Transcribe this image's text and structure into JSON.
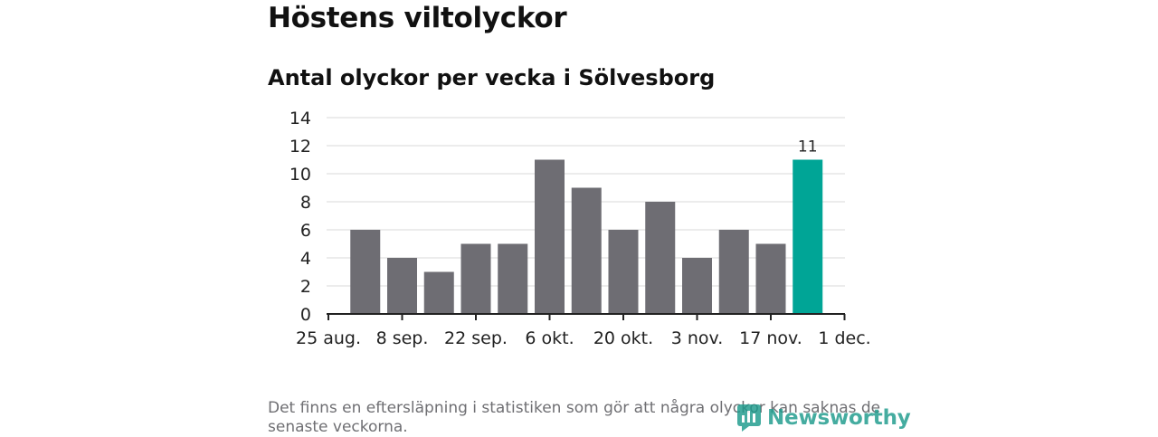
{
  "title": "Höstens viltolyckor",
  "subtitle": "Antal olyckor per vecka i Sölvesborg",
  "footnote": "Det finns en eftersläpning i statistiken som gör att några olyckor kan saknas de senaste veckorna.",
  "logo_text": "Newsworthy",
  "colors": {
    "bar": "#6e6d73",
    "highlight": "#00a596",
    "grid": "#d9d9d9",
    "axis": "#222222",
    "text": "#222222"
  },
  "chart_data": {
    "type": "bar",
    "title": "Antal olyckor per vecka i Sölvesborg",
    "xlabel": "",
    "ylabel": "",
    "ylim": [
      0,
      14
    ],
    "y_ticks": [
      0,
      2,
      4,
      6,
      8,
      10,
      12,
      14
    ],
    "grid": true,
    "x_tick_labels": [
      "25 aug.",
      "8 sep.",
      "22 sep.",
      "6 okt.",
      "20 okt.",
      "3 nov.",
      "17 nov.",
      "1 dec."
    ],
    "values": [
      6,
      4,
      3,
      5,
      5,
      11,
      9,
      6,
      8,
      4,
      6,
      5,
      11
    ],
    "highlight_index": 12,
    "data_labels": [
      {
        "index": 12,
        "text": "11"
      }
    ]
  }
}
